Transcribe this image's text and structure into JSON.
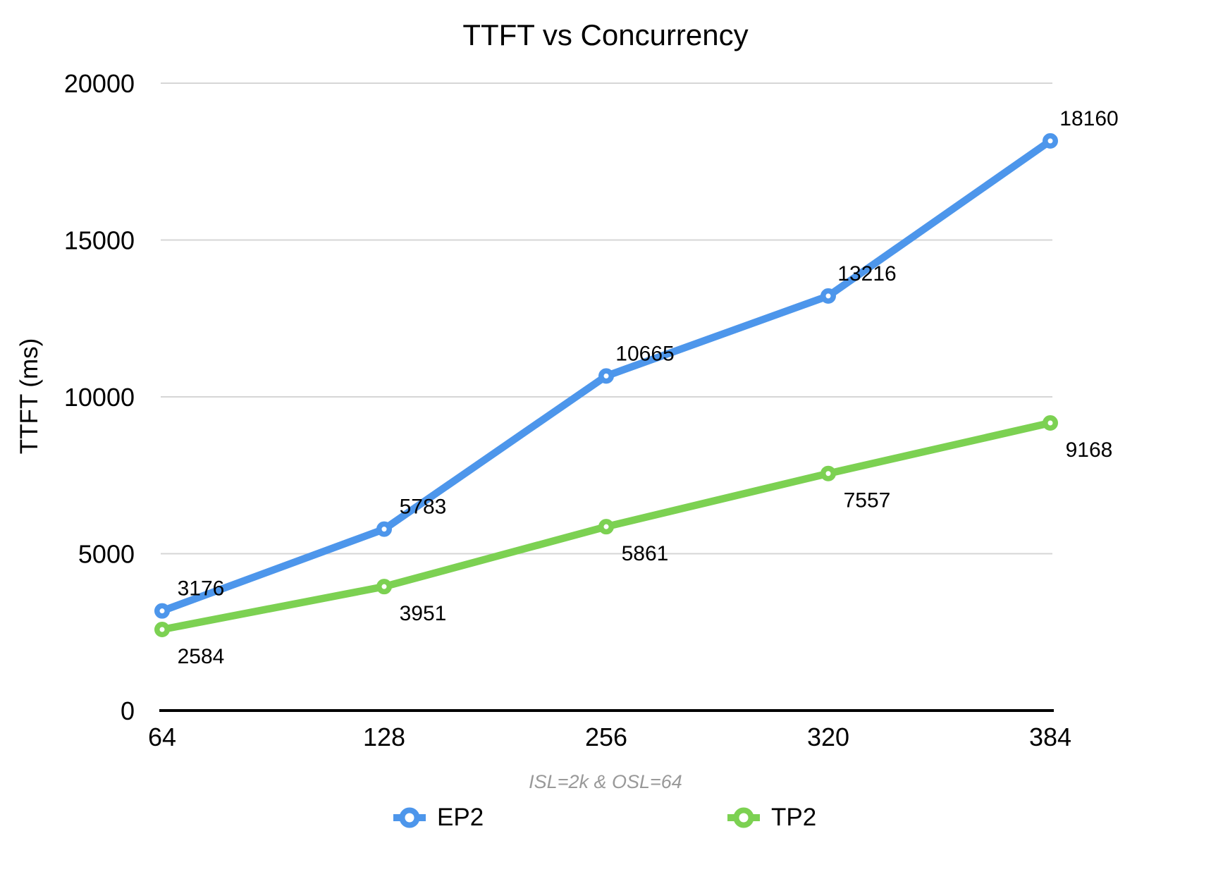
{
  "chart_data": {
    "type": "line",
    "title": "TTFT vs Concurrency",
    "ylabel": "TTFT (ms)",
    "xlabel": "ISL=2k & OSL=64",
    "categories": [
      "64",
      "128",
      "256",
      "320",
      "384"
    ],
    "y_ticks": [
      0,
      5000,
      10000,
      15000,
      20000
    ],
    "ylim": [
      0,
      20000
    ],
    "grid": "horizontal",
    "legend_position": "bottom",
    "series": [
      {
        "name": "EP2",
        "color": "#4D96EB",
        "values": [
          3176,
          5783,
          10665,
          13216,
          18160
        ],
        "label_position": "above"
      },
      {
        "name": "TP2",
        "color": "#7CD152",
        "values": [
          2584,
          3951,
          5861,
          7557,
          9168
        ],
        "label_position": "below"
      }
    ],
    "colors": {
      "gridline": "#D6D6D6",
      "axis_line": "#000000",
      "text": "#000000",
      "subtitle_text": "#999999",
      "background": "#FFFFFF",
      "marker_fill": "#FFFFFF"
    }
  }
}
